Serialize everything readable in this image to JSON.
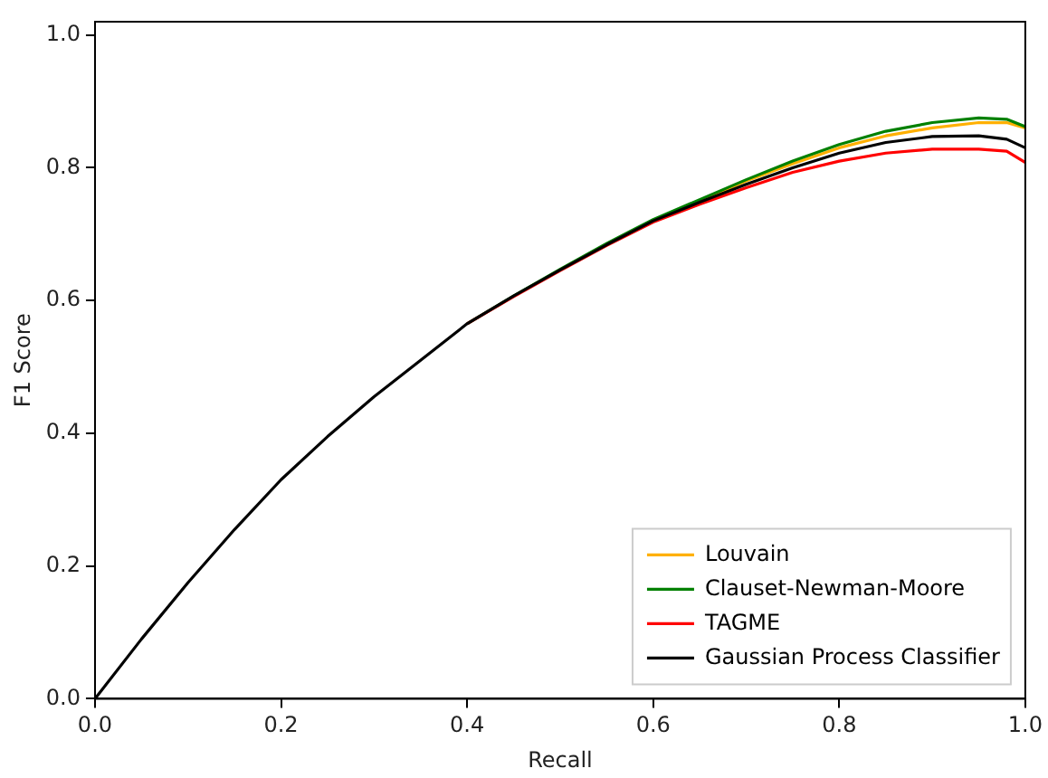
{
  "chart_data": {
    "type": "line",
    "xlabel": "Recall",
    "ylabel": "F1 Score",
    "x": [
      0,
      0.05,
      0.1,
      0.15,
      0.2,
      0.25,
      0.3,
      0.35,
      0.4,
      0.45,
      0.5,
      0.55,
      0.6,
      0.65,
      0.7,
      0.75,
      0.8,
      0.85,
      0.9,
      0.95,
      0.98,
      1.0
    ],
    "series": [
      {
        "name": "Louvain",
        "color": "#ffb000",
        "values": [
          null,
          null,
          null,
          null,
          null,
          null,
          null,
          null,
          null,
          null,
          null,
          null,
          null,
          0.75,
          0.78,
          0.806,
          0.83,
          0.848,
          0.86,
          0.868,
          0.868,
          0.86
        ]
      },
      {
        "name": "Clauset-Newman-Moore",
        "color": "#008000",
        "values": [
          null,
          null,
          null,
          null,
          null,
          null,
          null,
          null,
          0.565,
          0.607,
          0.647,
          0.686,
          0.722,
          0.752,
          0.782,
          0.81,
          0.835,
          0.855,
          0.868,
          0.875,
          0.873,
          0.862
        ]
      },
      {
        "name": "TAGME",
        "color": "#ff0000",
        "values": [
          null,
          null,
          null,
          null,
          null,
          null,
          null,
          null,
          0.565,
          0.606,
          0.645,
          0.683,
          0.718,
          0.745,
          0.77,
          0.793,
          0.81,
          0.822,
          0.828,
          0.828,
          0.825,
          0.808
        ]
      },
      {
        "name": "Gaussian Process Classifier",
        "color": "#000000",
        "values": [
          0,
          0.09,
          0.175,
          0.255,
          0.33,
          0.395,
          0.455,
          0.51,
          0.565,
          0.607,
          0.646,
          0.684,
          0.72,
          0.748,
          0.775,
          0.8,
          0.822,
          0.838,
          0.847,
          0.848,
          0.843,
          0.83
        ]
      }
    ],
    "xlim": [
      0,
      1.0
    ],
    "ylim": [
      0,
      1.02
    ],
    "xticks": [
      {
        "value": 0,
        "label": "0.0"
      },
      0.2,
      0.4,
      0.6,
      0.8,
      {
        "value": 1,
        "label": "1.0"
      }
    ],
    "yticks": [
      {
        "value": 0,
        "label": "0.0"
      },
      0.2,
      0.4,
      0.6,
      0.8,
      {
        "value": 1,
        "label": "1.0"
      }
    ],
    "grid": false,
    "legend": "bottom right",
    "marker": "none",
    "line_style": "solid"
  }
}
